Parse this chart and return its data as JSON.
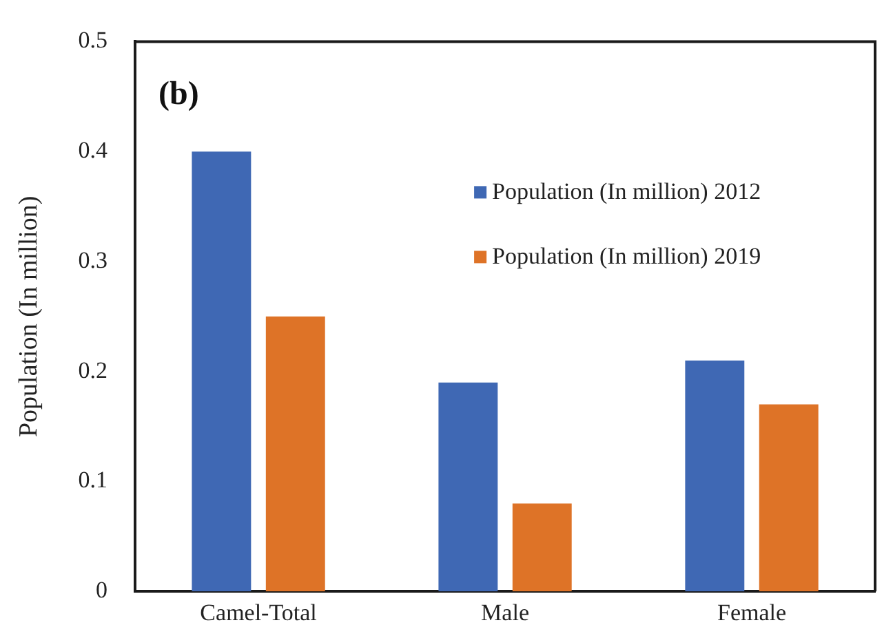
{
  "chart_data": {
    "type": "bar",
    "ylabel": "Population (In million)",
    "annotations": [
      "(b)"
    ],
    "categories": [
      "Camel-Total",
      "Male",
      "Female"
    ],
    "series": [
      {
        "name": "Population (In million) 2012",
        "color": "#3f68b4",
        "values": [
          0.4,
          0.19,
          0.21
        ]
      },
      {
        "name": "Population (In million) 2019",
        "color": "#de7327",
        "values": [
          0.25,
          0.08,
          0.17
        ]
      }
    ],
    "ylim": [
      0,
      0.5
    ],
    "yticks": [
      0,
      0.1,
      0.2,
      0.3,
      0.4,
      0.5
    ],
    "grid": false,
    "legend": "top right"
  }
}
